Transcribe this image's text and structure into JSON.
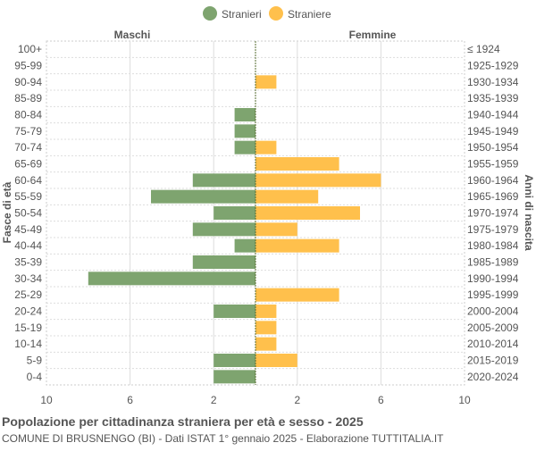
{
  "chart_data": {
    "type": "bar",
    "orientation": "horizontal-population-pyramid",
    "title": "Popolazione per cittadinanza straniera per età e sesso - 2025",
    "subtitle": "COMUNE DI BRUSNENGO (BI) - Dati ISTAT 1° gennaio 2025 - Elaborazione TUTTITALIA.IT",
    "ylabel_left": "Fasce di età",
    "ylabel_right": "Anni di nascita",
    "side_labels": {
      "left": "Maschi",
      "right": "Femmine"
    },
    "legend": {
      "placement": "top",
      "entries": [
        {
          "name": "Stranieri",
          "color": "#7ea46f"
        },
        {
          "name": "Straniere",
          "color": "#ffc04c"
        }
      ]
    },
    "xlim": [
      -10,
      10
    ],
    "x_ticks": [
      -10,
      -6,
      -2,
      2,
      6,
      10
    ],
    "x_tick_labels": [
      "10",
      "6",
      "2",
      "2",
      "6",
      "10"
    ],
    "grid": true,
    "categories": [
      "100+",
      "95-99",
      "90-94",
      "85-89",
      "80-84",
      "75-79",
      "70-74",
      "65-69",
      "60-64",
      "55-59",
      "50-54",
      "45-49",
      "40-44",
      "35-39",
      "30-34",
      "25-29",
      "20-24",
      "15-19",
      "10-14",
      "5-9",
      "0-4"
    ],
    "birth_years": [
      "≤ 1924",
      "1925-1929",
      "1930-1934",
      "1935-1939",
      "1940-1944",
      "1945-1949",
      "1950-1954",
      "1955-1959",
      "1960-1964",
      "1965-1969",
      "1970-1974",
      "1975-1979",
      "1980-1984",
      "1985-1989",
      "1990-1994",
      "1995-1999",
      "2000-2004",
      "2005-2009",
      "2010-2014",
      "2015-2019",
      "2020-2024"
    ],
    "series": [
      {
        "name": "Stranieri",
        "color": "#7ea46f",
        "values": [
          0,
          0,
          0,
          0,
          1,
          1,
          1,
          0,
          3,
          5,
          2,
          3,
          1,
          3,
          8,
          0,
          2,
          0,
          0,
          2,
          2
        ]
      },
      {
        "name": "Straniere",
        "color": "#ffc04c",
        "values": [
          0,
          0,
          1,
          0,
          0,
          0,
          1,
          4,
          6,
          3,
          5,
          2,
          4,
          0,
          0,
          4,
          1,
          1,
          1,
          2,
          0
        ]
      }
    ]
  }
}
